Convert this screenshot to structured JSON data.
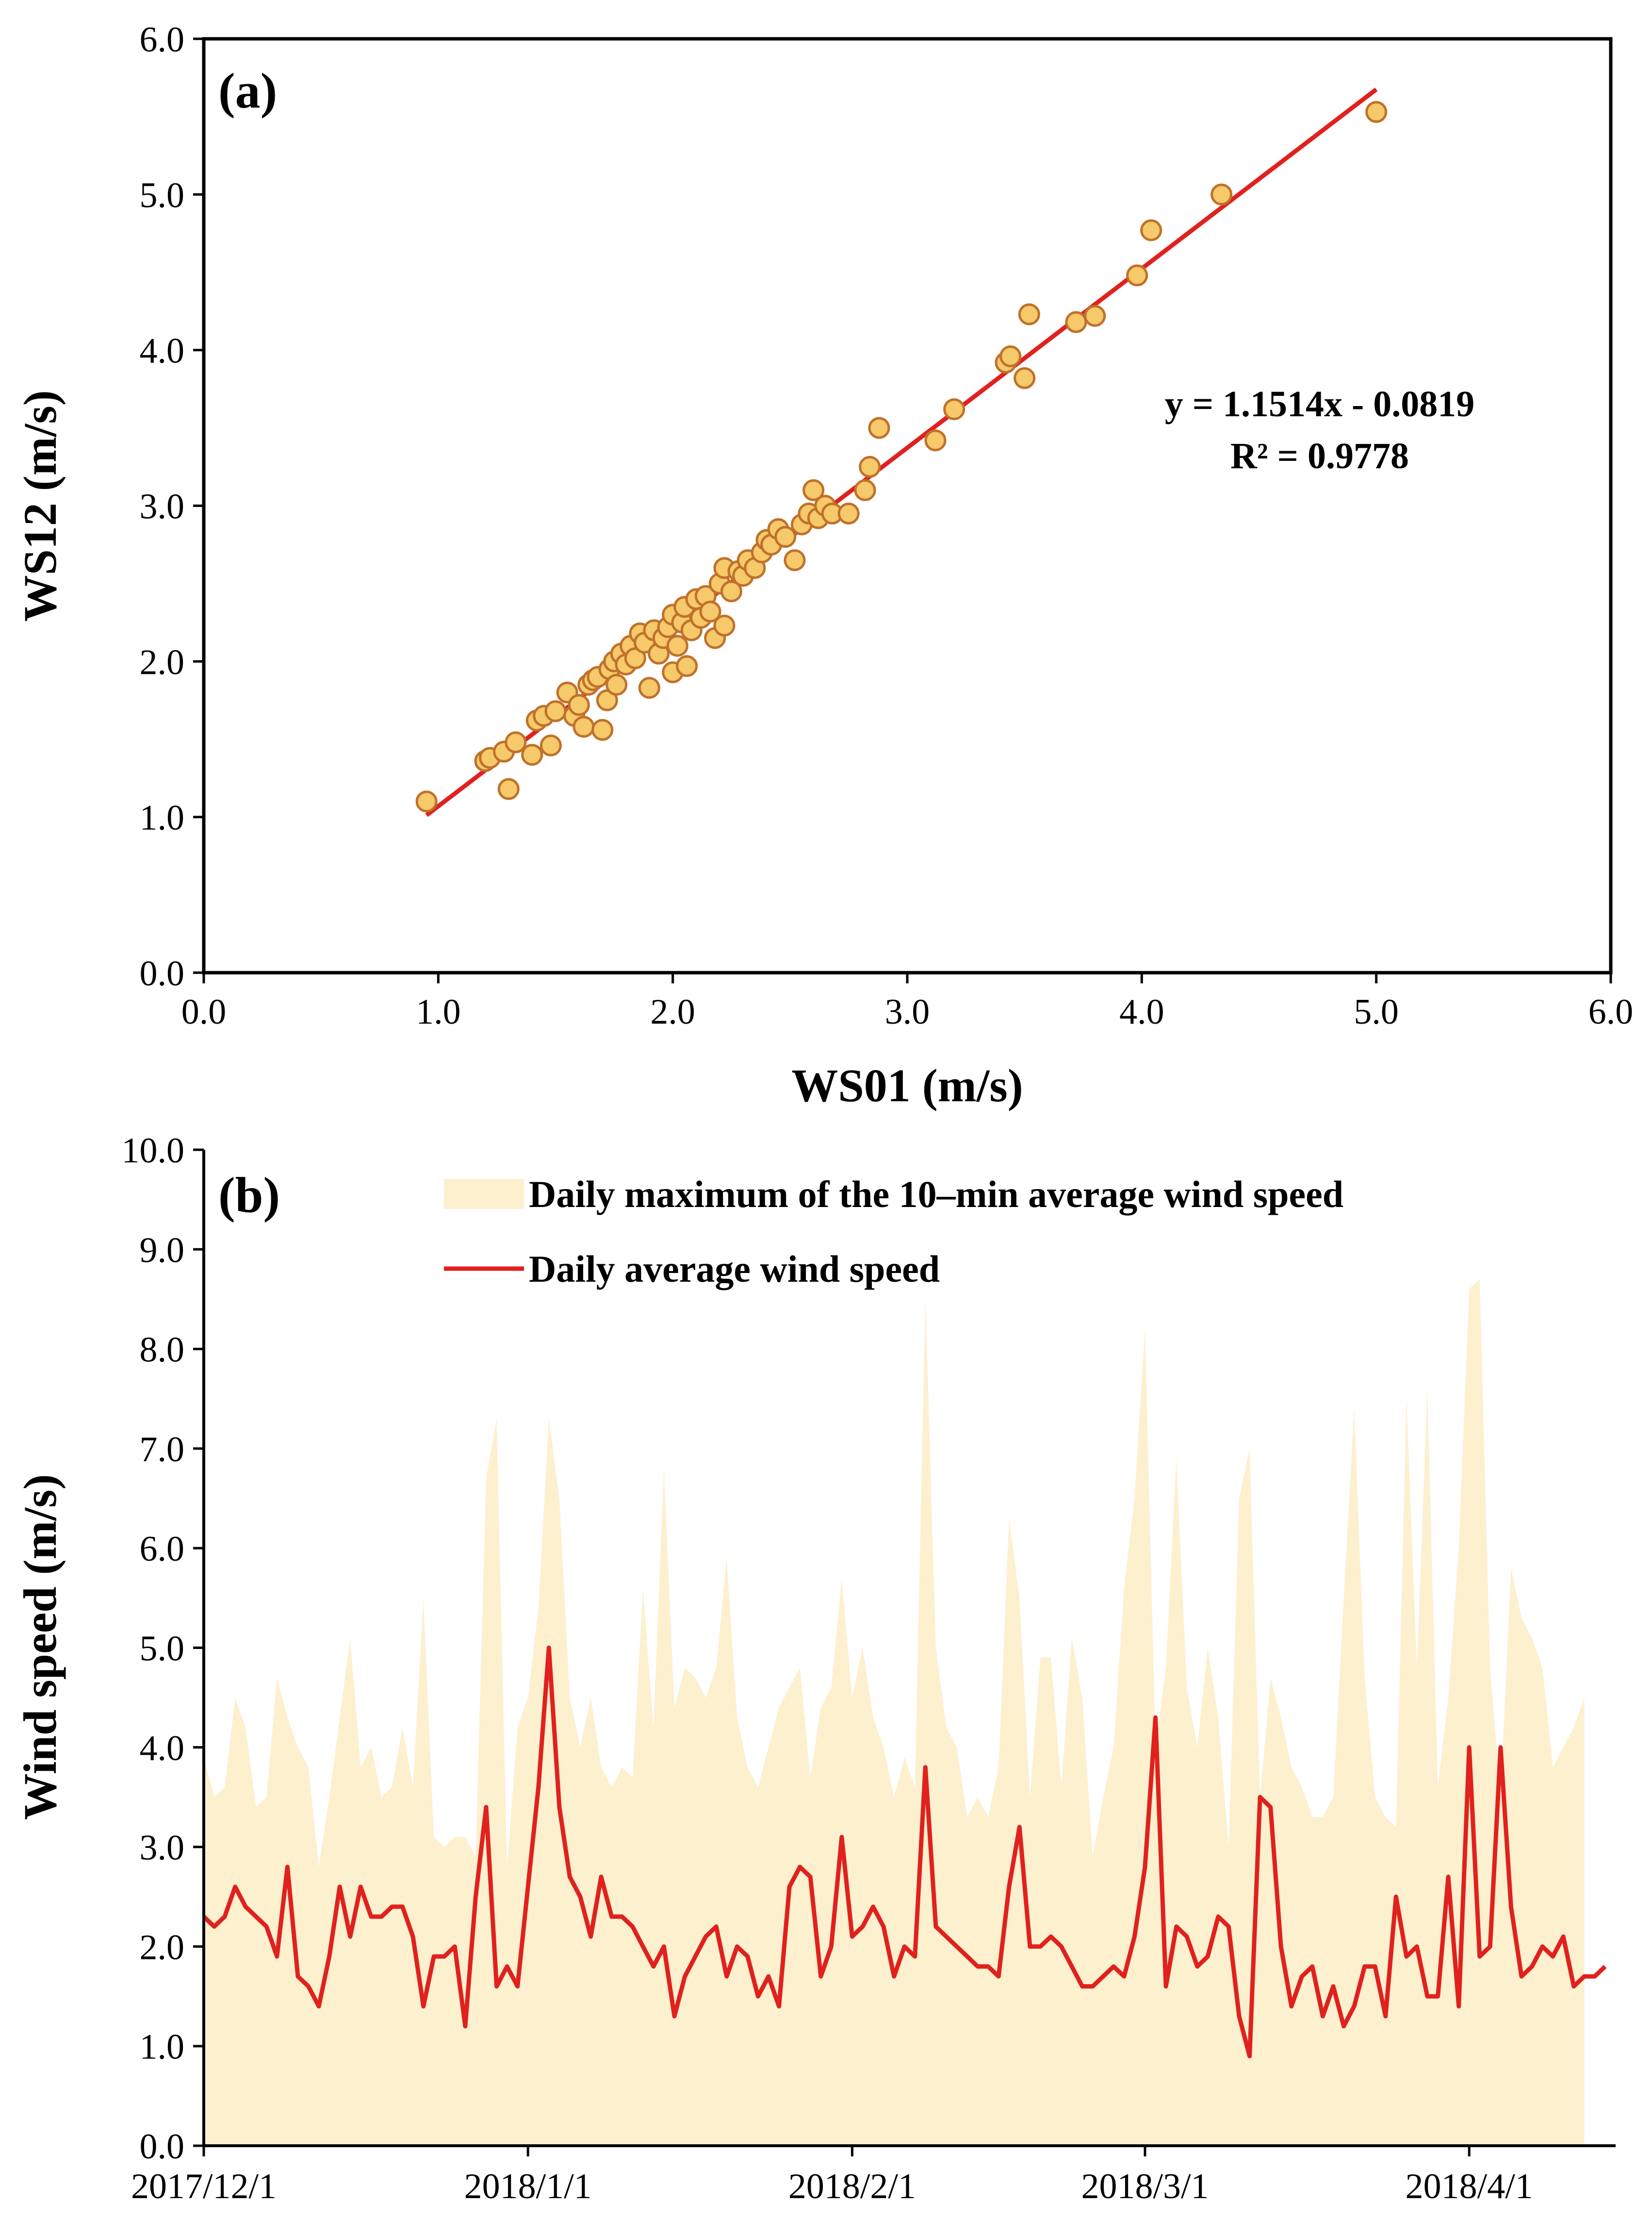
{
  "chart_data": [
    {
      "type": "scatter",
      "panel_label": "(a)",
      "xlabel": "WS01 (m/s)",
      "ylabel": "WS12 (m/s)",
      "xlim": [
        0.0,
        6.0
      ],
      "ylim": [
        0.0,
        6.0
      ],
      "x_ticks": [
        "0.0",
        "1.0",
        "2.0",
        "3.0",
        "4.0",
        "5.0",
        "6.0"
      ],
      "y_ticks": [
        "0.0",
        "1.0",
        "2.0",
        "3.0",
        "4.0",
        "5.0",
        "6.0"
      ],
      "grid": false,
      "point_color": "#f6c96a",
      "point_edge_color": "#c0712a",
      "trend_line_color": "#e0211d",
      "equation": "y = 1.1514x - 0.0819",
      "r_squared": "R² = 0.9778",
      "trend_line": {
        "slope": 1.1514,
        "intercept": -0.0819,
        "x_range": [
          0.95,
          5.0
        ]
      },
      "points": [
        [
          0.95,
          1.1
        ],
        [
          1.2,
          1.36
        ],
        [
          1.22,
          1.38
        ],
        [
          1.28,
          1.42
        ],
        [
          1.3,
          1.18
        ],
        [
          1.33,
          1.48
        ],
        [
          1.4,
          1.4
        ],
        [
          1.42,
          1.62
        ],
        [
          1.45,
          1.65
        ],
        [
          1.48,
          1.46
        ],
        [
          1.5,
          1.68
        ],
        [
          1.55,
          1.8
        ],
        [
          1.58,
          1.65
        ],
        [
          1.6,
          1.72
        ],
        [
          1.62,
          1.58
        ],
        [
          1.64,
          1.85
        ],
        [
          1.66,
          1.88
        ],
        [
          1.68,
          1.9
        ],
        [
          1.7,
          1.56
        ],
        [
          1.72,
          1.75
        ],
        [
          1.73,
          1.95
        ],
        [
          1.75,
          2.0
        ],
        [
          1.76,
          1.85
        ],
        [
          1.78,
          2.05
        ],
        [
          1.8,
          1.98
        ],
        [
          1.82,
          2.1
        ],
        [
          1.84,
          2.02
        ],
        [
          1.86,
          2.18
        ],
        [
          1.88,
          2.12
        ],
        [
          1.9,
          1.83
        ],
        [
          1.92,
          2.2
        ],
        [
          1.94,
          2.05
        ],
        [
          1.96,
          2.15
        ],
        [
          1.98,
          2.22
        ],
        [
          2.0,
          1.93
        ],
        [
          2.0,
          2.3
        ],
        [
          2.02,
          2.1
        ],
        [
          2.04,
          2.25
        ],
        [
          2.05,
          2.35
        ],
        [
          2.06,
          1.97
        ],
        [
          2.08,
          2.2
        ],
        [
          2.1,
          2.4
        ],
        [
          2.12,
          2.28
        ],
        [
          2.14,
          2.42
        ],
        [
          2.16,
          2.32
        ],
        [
          2.18,
          2.15
        ],
        [
          2.2,
          2.5
        ],
        [
          2.22,
          2.6
        ],
        [
          2.22,
          2.23
        ],
        [
          2.25,
          2.45
        ],
        [
          2.28,
          2.58
        ],
        [
          2.3,
          2.55
        ],
        [
          2.32,
          2.65
        ],
        [
          2.35,
          2.6
        ],
        [
          2.38,
          2.7
        ],
        [
          2.4,
          2.78
        ],
        [
          2.42,
          2.75
        ],
        [
          2.45,
          2.85
        ],
        [
          2.48,
          2.8
        ],
        [
          2.52,
          2.65
        ],
        [
          2.55,
          2.88
        ],
        [
          2.58,
          2.95
        ],
        [
          2.6,
          3.1
        ],
        [
          2.62,
          2.92
        ],
        [
          2.65,
          3.0
        ],
        [
          2.68,
          2.95
        ],
        [
          2.75,
          2.95
        ],
        [
          2.82,
          3.1
        ],
        [
          2.84,
          3.25
        ],
        [
          2.88,
          3.5
        ],
        [
          3.12,
          3.42
        ],
        [
          3.2,
          3.62
        ],
        [
          3.42,
          3.92
        ],
        [
          3.44,
          3.96
        ],
        [
          3.5,
          3.82
        ],
        [
          3.52,
          4.23
        ],
        [
          3.72,
          4.18
        ],
        [
          3.8,
          4.22
        ],
        [
          3.98,
          4.48
        ],
        [
          4.04,
          4.77
        ],
        [
          4.34,
          5.0
        ],
        [
          5.0,
          5.53
        ]
      ]
    },
    {
      "type": "area",
      "panel_label": "(b)",
      "xlabel": "",
      "ylabel": "Wind speed (m/s)",
      "ylim": [
        0.0,
        10.0
      ],
      "y_ticks": [
        "0.0",
        "1.0",
        "2.0",
        "3.0",
        "4.0",
        "5.0",
        "6.0",
        "7.0",
        "8.0",
        "9.0",
        "10.0"
      ],
      "x_ticks": [
        {
          "label": "2017/12/1",
          "day": 0
        },
        {
          "label": "2018/1/1",
          "day": 31
        },
        {
          "label": "2018/2/1",
          "day": 62
        },
        {
          "label": "2018/3/1",
          "day": 90
        },
        {
          "label": "2018/4/1",
          "day": 121
        }
      ],
      "x_range_days": [
        0,
        135
      ],
      "legend_position": "top",
      "series": [
        {
          "name": "Daily maximum of the 10–min average wind speed",
          "style": "area",
          "color": "#fdf0cf",
          "values": [
            3.9,
            3.5,
            3.6,
            4.5,
            4.2,
            3.4,
            3.5,
            4.7,
            4.3,
            4.0,
            3.8,
            2.8,
            3.5,
            4.3,
            5.1,
            3.8,
            4.0,
            3.5,
            3.6,
            4.2,
            3.6,
            5.5,
            3.1,
            3.0,
            3.1,
            3.1,
            2.9,
            6.7,
            7.3,
            2.8,
            4.2,
            4.5,
            5.4,
            7.3,
            6.5,
            4.5,
            4.0,
            4.5,
            3.8,
            3.6,
            3.8,
            3.7,
            5.6,
            4.2,
            6.8,
            4.4,
            4.8,
            4.7,
            4.5,
            4.8,
            5.9,
            4.3,
            3.8,
            3.6,
            4.0,
            4.4,
            4.6,
            4.8,
            3.7,
            4.4,
            4.6,
            5.7,
            4.5,
            5.0,
            4.3,
            4.0,
            3.5,
            3.9,
            3.6,
            8.5,
            5.0,
            4.2,
            4.0,
            3.3,
            3.5,
            3.3,
            3.8,
            6.3,
            5.5,
            3.5,
            4.9,
            4.9,
            3.6,
            5.1,
            4.5,
            2.9,
            3.5,
            4.0,
            5.6,
            6.5,
            8.2,
            4.0,
            4.8,
            6.9,
            4.6,
            4.0,
            5.0,
            4.3,
            3.0,
            6.5,
            7.0,
            3.5,
            4.7,
            4.3,
            3.8,
            3.6,
            3.3,
            3.3,
            3.5,
            5.5,
            7.4,
            4.7,
            3.5,
            3.3,
            3.2,
            7.5,
            4.8,
            7.6,
            3.6,
            4.5,
            6.0,
            8.6,
            8.7,
            4.8,
            3.5,
            5.8,
            5.3,
            5.1,
            4.8,
            3.8,
            4.0,
            4.2,
            4.5
          ]
        },
        {
          "name": "Daily average wind speed",
          "style": "line",
          "color": "#e0211d",
          "values": [
            2.3,
            2.2,
            2.3,
            2.6,
            2.4,
            2.3,
            2.2,
            1.9,
            2.8,
            1.7,
            1.6,
            1.4,
            1.9,
            2.6,
            2.1,
            2.6,
            2.3,
            2.3,
            2.4,
            2.4,
            2.1,
            1.4,
            1.9,
            1.9,
            2.0,
            1.2,
            2.5,
            3.4,
            1.6,
            1.8,
            1.6,
            2.6,
            3.6,
            5.0,
            3.4,
            2.7,
            2.5,
            2.1,
            2.7,
            2.3,
            2.3,
            2.2,
            2.0,
            1.8,
            2.0,
            1.3,
            1.7,
            1.9,
            2.1,
            2.2,
            1.7,
            2.0,
            1.9,
            1.5,
            1.7,
            1.4,
            2.6,
            2.8,
            2.7,
            1.7,
            2.0,
            3.1,
            2.1,
            2.2,
            2.4,
            2.2,
            1.7,
            2.0,
            1.9,
            3.8,
            2.2,
            2.1,
            2.0,
            1.9,
            1.8,
            1.8,
            1.7,
            2.6,
            3.2,
            2.0,
            2.0,
            2.1,
            2.0,
            1.8,
            1.6,
            1.6,
            1.7,
            1.8,
            1.7,
            2.1,
            2.8,
            4.3,
            1.6,
            2.2,
            2.1,
            1.8,
            1.9,
            2.3,
            2.2,
            1.3,
            0.9,
            3.5,
            3.4,
            2.0,
            1.4,
            1.7,
            1.8,
            1.3,
            1.6,
            1.2,
            1.4,
            1.8,
            1.8,
            1.3,
            2.5,
            1.9,
            2.0,
            1.5,
            1.5,
            2.7,
            1.4,
            4.0,
            1.9,
            2.0,
            4.0,
            2.4,
            1.7,
            1.8,
            2.0,
            1.9,
            2.1,
            1.6,
            1.7,
            1.7,
            1.8
          ]
        }
      ]
    }
  ]
}
